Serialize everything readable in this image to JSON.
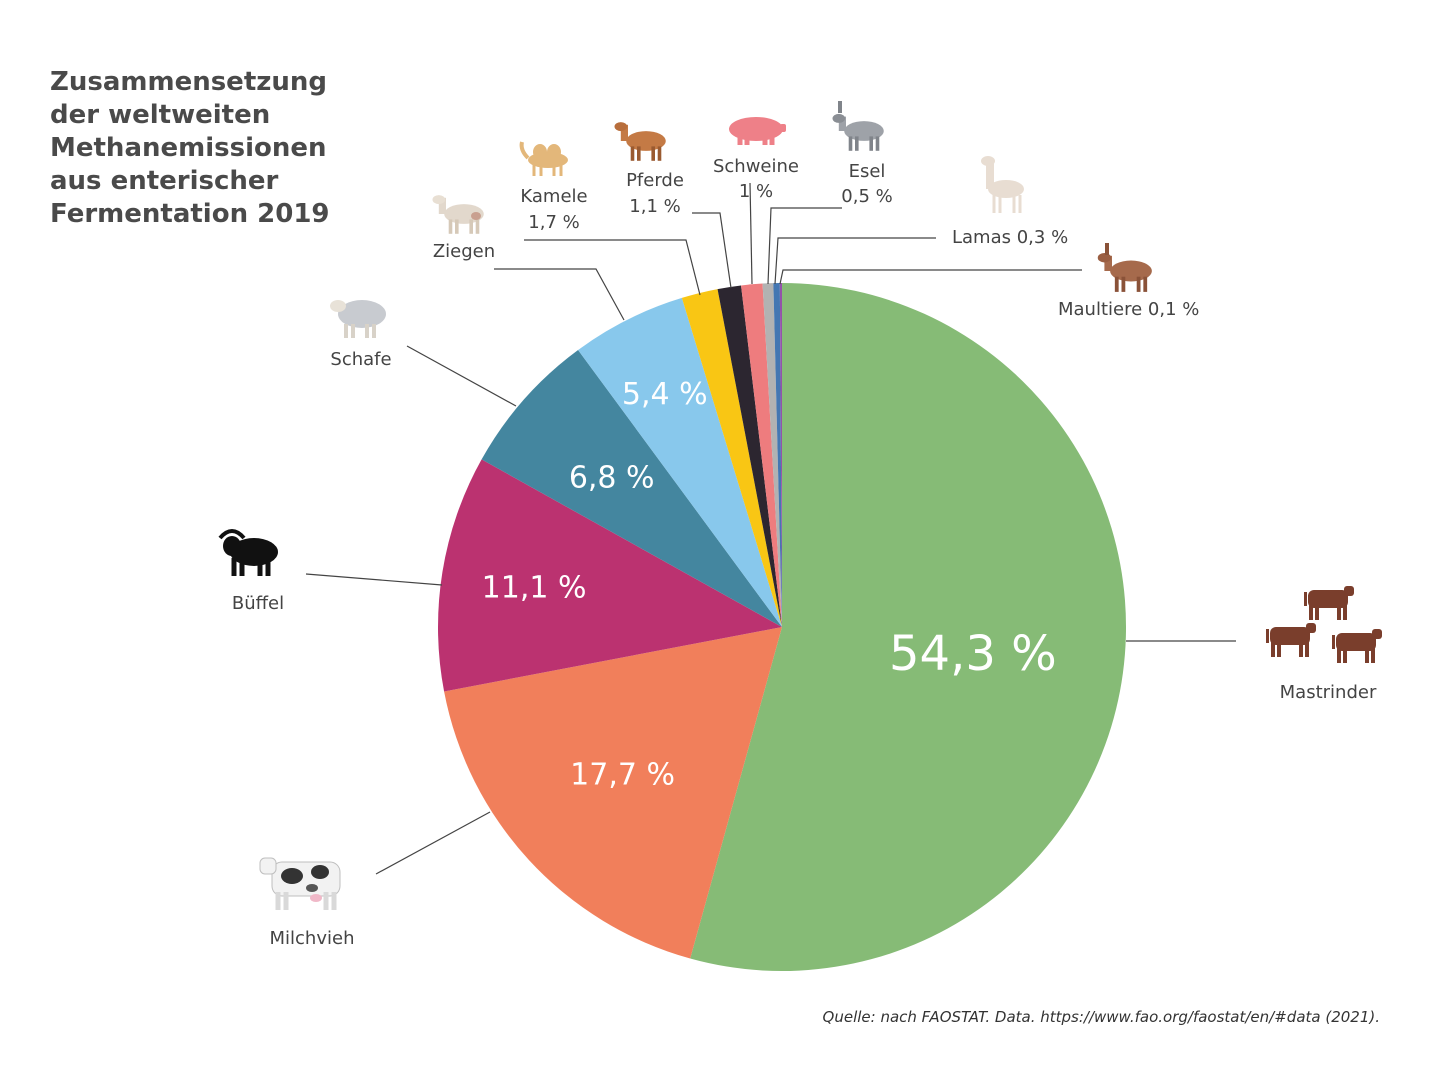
{
  "title_lines": [
    "Zusammensetzung",
    "der weltweiten",
    "Methanemissionen",
    "aus enterischer",
    "Fermentation 2019"
  ],
  "source": "Quelle: nach FAOSTAT. Data. https://www.fao.org/faostat/en/#data (2021).",
  "chart_data": {
    "type": "pie",
    "title": "Zusammensetzung der weltweiten Methanemissionen aus enterischer Fermentation 2019",
    "unit": "%",
    "start": "12 o'clock",
    "direction": "clockwise",
    "slices": [
      {
        "name": "Mastrinder",
        "value": 54.3,
        "label": "54,3 %",
        "color": "#86bb76",
        "icon": "cattle-icon"
      },
      {
        "name": "Milchvieh",
        "value": 17.7,
        "label": "17,7 %",
        "color": "#f17f5b",
        "icon": "dairy-cow-icon"
      },
      {
        "name": "Büffel",
        "value": 11.1,
        "label": "11,1 %",
        "color": "#bb3270",
        "icon": "buffalo-icon"
      },
      {
        "name": "Schafe",
        "value": 6.8,
        "label": "6,8 %",
        "color": "#44869f",
        "icon": "sheep-icon"
      },
      {
        "name": "Ziegen",
        "value": 5.4,
        "label": "5,4 %",
        "color": "#88c8ec",
        "icon": "goat-icon"
      },
      {
        "name": "Kamele",
        "value": 1.7,
        "label": "1,7 %",
        "color": "#f9c614",
        "icon": "camel-icon"
      },
      {
        "name": "Pferde",
        "value": 1.1,
        "label": "1,1 %",
        "color": "#2c2630",
        "icon": "horse-icon"
      },
      {
        "name": "Schweine",
        "value": 1.0,
        "label": "1 %",
        "color": "#ee7c7e",
        "icon": "pig-icon"
      },
      {
        "name": "Esel",
        "value": 0.5,
        "label": "0,5 %",
        "color": "#b2b2b2",
        "icon": "donkey-icon"
      },
      {
        "name": "Lamas",
        "value": 0.3,
        "label": "0,3 %",
        "color": "#4477b2",
        "icon": "llama-icon"
      },
      {
        "name": "Maultiere",
        "value": 0.1,
        "label": "0,1 %",
        "color": "#9453aa",
        "icon": "mule-icon"
      }
    ]
  }
}
